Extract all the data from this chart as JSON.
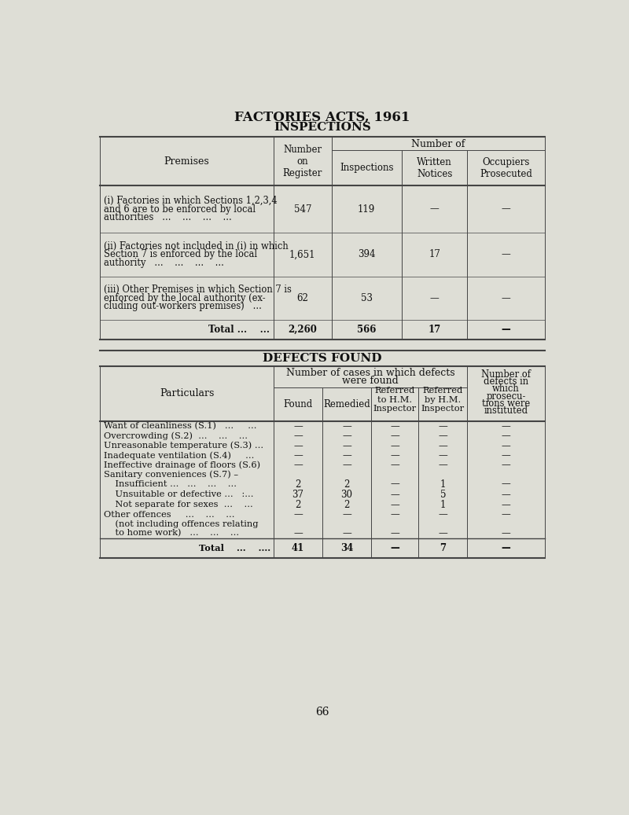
{
  "title1": "FACTORIES ACTS, 1961",
  "title2": "INSPECTIONS",
  "title3": "DEFECTS FOUND",
  "bg_color": "#deded6",
  "text_color": "#1a1a1a",
  "page_number": "66",
  "inspections_rows": [
    {
      "label_lines": [
        "(i) Factories in which Sections 1,2,3,4",
        "and 6 are to be enforced by local",
        "authorities   ...    ...    ...    ..."
      ],
      "values": [
        "547",
        "119",
        "—",
        "—"
      ],
      "is_total": false
    },
    {
      "label_lines": [
        "(ii) Factories not included in (i) in which",
        "Section 7 is enforced by the local",
        "authority   ...    ...    ...    ..."
      ],
      "values": [
        "1,651",
        "394",
        "17",
        "—"
      ],
      "is_total": false
    },
    {
      "label_lines": [
        "(iii) Other Premises in which Section 7 is",
        "enforced by the local authority (ex-",
        "cluding out-workers premises)   ..."
      ],
      "values": [
        "62",
        "53",
        "—",
        "—"
      ],
      "is_total": false
    },
    {
      "label_lines": [
        "Total ...    ..."
      ],
      "values": [
        "2,260",
        "566",
        "17",
        "—"
      ],
      "is_total": true
    }
  ],
  "defects_rows": [
    {
      "label": "Want of cleanliness (S.1)   ...     ...",
      "values": [
        "—",
        "—",
        "—",
        "—",
        "—"
      ],
      "is_total": false,
      "is_subheader": false,
      "is_continuation": false
    },
    {
      "label": "Overcrowding (S.2)  ...    ...    ...",
      "values": [
        "—",
        "—",
        "—",
        "—",
        "—"
      ],
      "is_total": false,
      "is_subheader": false,
      "is_continuation": false
    },
    {
      "label": "Unreasonable temperature (S.3) ...",
      "values": [
        "—",
        "—",
        "—",
        "—",
        "—"
      ],
      "is_total": false,
      "is_subheader": false,
      "is_continuation": false
    },
    {
      "label": "Inadequate ventilation (S.4)     ...",
      "values": [
        "—",
        "—",
        "—",
        "—",
        "—"
      ],
      "is_total": false,
      "is_subheader": false,
      "is_continuation": false
    },
    {
      "label": "Ineffective drainage of floors (S.6)",
      "values": [
        "—",
        "—",
        "—",
        "—",
        "—"
      ],
      "is_total": false,
      "is_subheader": false,
      "is_continuation": false
    },
    {
      "label": "Sanitary conveniences (S.7) –",
      "values": [
        "",
        "",
        "",
        "",
        ""
      ],
      "is_total": false,
      "is_subheader": true,
      "is_continuation": false
    },
    {
      "label": "    Insufficient ...   ...    ...    ...",
      "values": [
        "2",
        "2",
        "—",
        "1",
        "—"
      ],
      "is_total": false,
      "is_subheader": false,
      "is_continuation": false
    },
    {
      "label": "    Unsuitable or defective ...   :...",
      "values": [
        "37",
        "30",
        "—",
        "5",
        "—"
      ],
      "is_total": false,
      "is_subheader": false,
      "is_continuation": false
    },
    {
      "label": "    Not separate for sexes  ...    ...",
      "values": [
        "2",
        "2",
        "—",
        "1",
        "—"
      ],
      "is_total": false,
      "is_subheader": false,
      "is_continuation": false
    },
    {
      "label": "Other offences     ...    ...    ...",
      "values": [
        "—",
        "—",
        "—",
        "—",
        "—"
      ],
      "is_total": false,
      "is_subheader": false,
      "is_continuation": false
    },
    {
      "label": "    (not including offences relating",
      "values": [
        "",
        "",
        "",
        "",
        ""
      ],
      "is_total": false,
      "is_subheader": true,
      "is_continuation": false
    },
    {
      "label": "    to home work)   ...    ...    ...",
      "values": [
        "—",
        "—",
        "—",
        "—",
        "—"
      ],
      "is_total": false,
      "is_subheader": false,
      "is_continuation": true
    },
    {
      "label": "Total    ...    ....",
      "values": [
        "41",
        "34",
        "—",
        "7",
        "—"
      ],
      "is_total": true,
      "is_subheader": false,
      "is_continuation": false
    }
  ]
}
